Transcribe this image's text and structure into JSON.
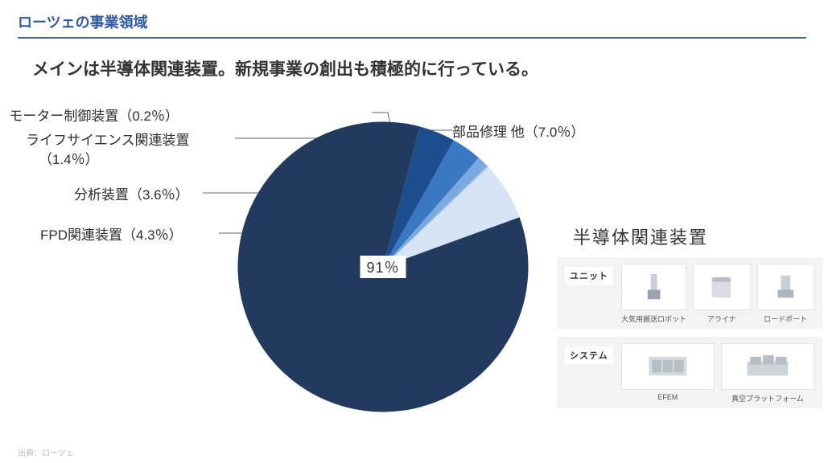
{
  "title": "ローツェの事業領域",
  "title_color": "#2f5aa8",
  "title_border_color": "#3a64b0",
  "subtitle": "メインは半導体関連装置。新規事業の創出も積極的に行っている。",
  "pie": {
    "type": "pie",
    "center_label": "91％",
    "start_angle_deg": 50,
    "background_color": "#ffffff",
    "slices": [
      {
        "name": "semiconductor",
        "label": "半導体関連装置",
        "value": 91.0,
        "color": "#223a5e"
      },
      {
        "name": "fpd",
        "label": "FPD関連装置（4.3％）",
        "value": 4.3,
        "color": "#1c4e8f"
      },
      {
        "name": "analysis",
        "label": "分析装置（3.6％）",
        "value": 3.6,
        "color": "#3a78c2"
      },
      {
        "name": "life",
        "label": "ライフサイエンス関連装置",
        "value": 1.4,
        "color": "#7aa9df"
      },
      {
        "name": "motor",
        "label": "モーター制御装置（0.2％）",
        "value": 0.2,
        "color": "#a8c6ea"
      },
      {
        "name": "parts",
        "label": "部品修理 他（7.0％）",
        "value": 7.0,
        "color": "#d6e4f5"
      }
    ],
    "life_pct_text": "（1.4％）"
  },
  "segment_title": "半導体関連装置",
  "panels": [
    {
      "tag": "ユニット",
      "items": [
        {
          "caption": "大気用搬送ロボット"
        },
        {
          "caption": "アライナ"
        },
        {
          "caption": "ロードポート"
        }
      ]
    },
    {
      "tag": "システム",
      "items": [
        {
          "caption": "EFEM"
        },
        {
          "caption": "真空プラットフォーム"
        }
      ]
    }
  ],
  "source": "出典：ローツェ"
}
